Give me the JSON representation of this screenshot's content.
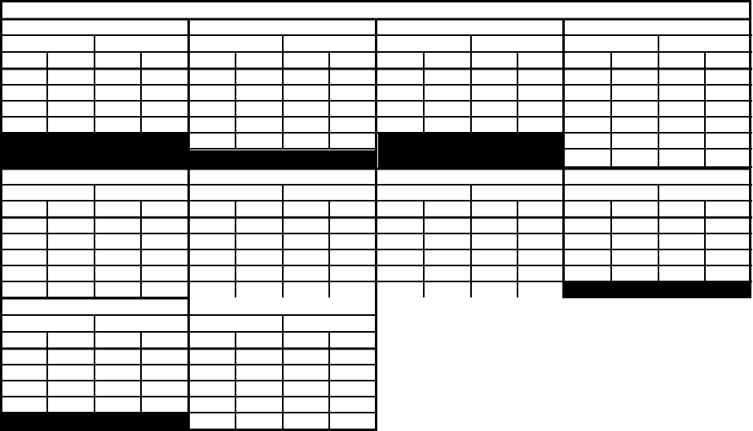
{
  "colors": {
    "line": "#000000",
    "background": "#ffffff",
    "filled_block": "#000000"
  }
}
